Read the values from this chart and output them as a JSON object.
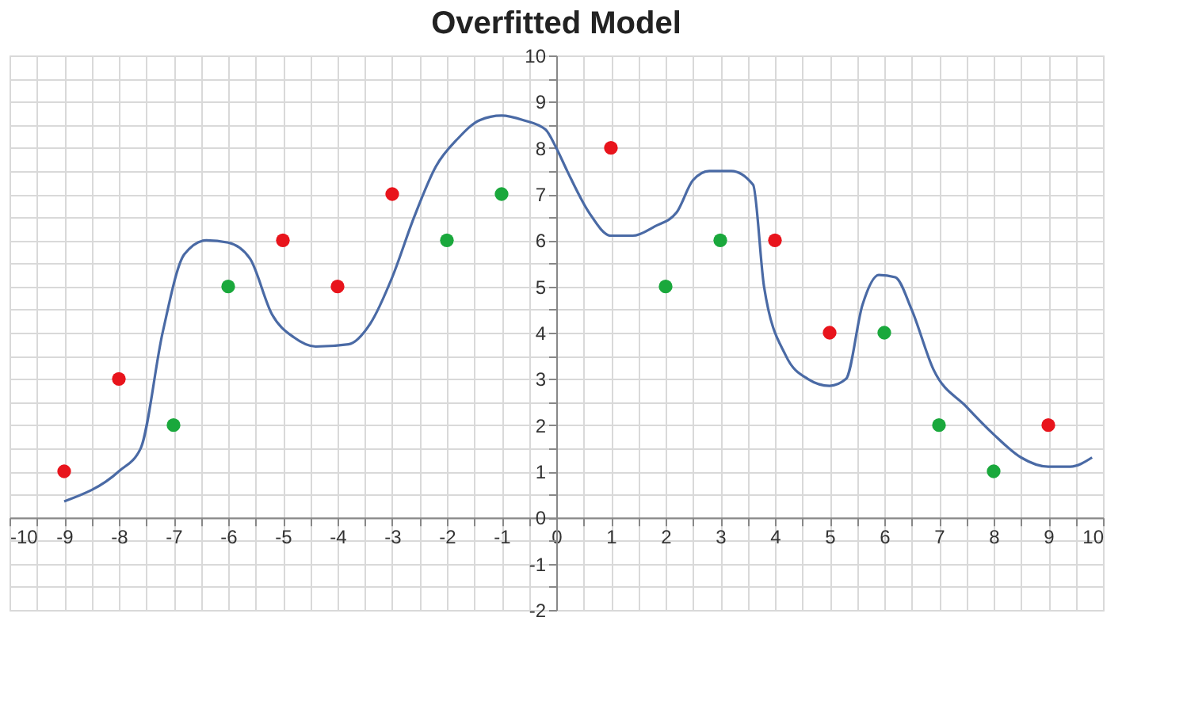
{
  "chart_data": {
    "type": "scatter",
    "title": "Overfitted Model",
    "xlim": [
      -10,
      10
    ],
    "ylim": [
      -2,
      10
    ],
    "xticks": [
      -10,
      {
        "value": -9.5,
        "label": null
      },
      -9,
      {
        "value": -8.5,
        "label": null
      },
      -8,
      {
        "value": -7.5,
        "label": null
      },
      -7,
      {
        "value": -6.5,
        "label": null
      },
      -6,
      {
        "value": -5.5,
        "label": null
      },
      -5,
      {
        "value": -4.5,
        "label": null
      },
      -4,
      {
        "value": -3.5,
        "label": null
      },
      -3,
      {
        "value": -2.5,
        "label": null
      },
      -2,
      {
        "value": -1.5,
        "label": null
      },
      -1,
      {
        "value": -0.5,
        "label": null
      },
      0,
      {
        "value": 0.5,
        "label": null
      },
      1,
      {
        "value": 1.5,
        "label": null
      },
      2,
      {
        "value": 2.5,
        "label": null
      },
      3,
      {
        "value": 3.5,
        "label": null
      },
      4,
      {
        "value": 4.5,
        "label": null
      },
      5,
      {
        "value": 5.5,
        "label": null
      },
      6,
      {
        "value": 6.5,
        "label": null
      },
      7,
      {
        "value": 7.5,
        "label": null
      },
      8,
      {
        "value": 8.5,
        "label": null
      },
      9,
      {
        "value": 9.5,
        "label": null
      },
      10
    ],
    "yticks": [
      -2,
      {
        "value": -1.5,
        "label": null
      },
      -1,
      {
        "value": -0.5,
        "label": null
      },
      0,
      {
        "value": 0.5,
        "label": null
      },
      1,
      {
        "value": 1.5,
        "label": null
      },
      2,
      {
        "value": 2.5,
        "label": null
      },
      3,
      {
        "value": 3.5,
        "label": null
      },
      4,
      {
        "value": 4.5,
        "label": null
      },
      5,
      {
        "value": 5.5,
        "label": null
      },
      6,
      {
        "value": 6.5,
        "label": null
      },
      7,
      {
        "value": 7.5,
        "label": null
      },
      8,
      {
        "value": 8.5,
        "label": null
      },
      9,
      {
        "value": 9.5,
        "label": null
      },
      10
    ],
    "grid": true,
    "marker": "circle",
    "series": [
      {
        "type": "line",
        "marker": "none",
        "color": "#4a6aa5",
        "x": [
          -9,
          -8,
          -7.6,
          -7.2,
          -6.8,
          -6.4,
          -6,
          -5.6,
          -5.2,
          -4.8,
          -4.4,
          -3.8,
          -3.4,
          -3,
          -2.6,
          -2.2,
          -1.8,
          -1.4,
          -1,
          -0.6,
          -0.2,
          0,
          0.2,
          0.6,
          1,
          1.4,
          1.8,
          2.2,
          2.5,
          2.8,
          3.2,
          3.6,
          3.8,
          4.2,
          4.6,
          5,
          5.3,
          5.6,
          5.9,
          6.2,
          6.5,
          6.9,
          7.5,
          8,
          8.5,
          9,
          9.4,
          9.8
        ],
        "values": [
          0.35,
          1.0,
          1.5,
          4.0,
          5.7,
          6.0,
          5.95,
          5.6,
          4.4,
          3.9,
          3.7,
          3.75,
          4.2,
          5.2,
          6.5,
          7.6,
          8.2,
          8.6,
          8.7,
          8.6,
          8.4,
          8.0,
          7.5,
          6.6,
          6.1,
          6.1,
          6.3,
          6.6,
          7.3,
          7.5,
          7.5,
          7.2,
          5.0,
          3.5,
          3.0,
          2.85,
          3.0,
          4.6,
          5.25,
          5.2,
          4.5,
          3.2,
          2.4,
          1.8,
          1.3,
          1.1,
          1.1,
          1.3
        ]
      },
      {
        "color": "#e8141c",
        "x": [
          -9,
          -8,
          -5,
          -4,
          -3,
          1,
          4,
          5,
          9
        ],
        "values": [
          1,
          3,
          6,
          5,
          7,
          8,
          6,
          4,
          2
        ]
      },
      {
        "color": "#1aa83c",
        "x": [
          -7,
          -6,
          -2,
          -1,
          2,
          3,
          6,
          7,
          8
        ],
        "values": [
          2,
          5,
          6,
          7,
          5,
          6,
          4,
          2,
          1
        ]
      }
    ]
  }
}
